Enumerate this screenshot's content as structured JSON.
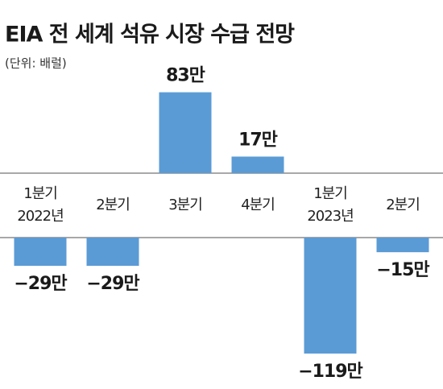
{
  "chart_data": {
    "type": "bar",
    "title": "EIA 전 세계 석유 시장 수급 전망",
    "subtitle": "(단위: 배럴)",
    "categories": [
      [
        "1분기",
        "2022년"
      ],
      [
        "2분기"
      ],
      [
        "3분기"
      ],
      [
        "4분기"
      ],
      [
        "1분기",
        "2023년"
      ],
      [
        "2분기"
      ]
    ],
    "values": [
      -29,
      -29,
      83,
      17,
      -119,
      -15
    ],
    "value_labels": [
      "−29만",
      "−29만",
      "83만",
      "17만",
      "−119만",
      "−15만"
    ],
    "color": "#5b9bd5"
  }
}
